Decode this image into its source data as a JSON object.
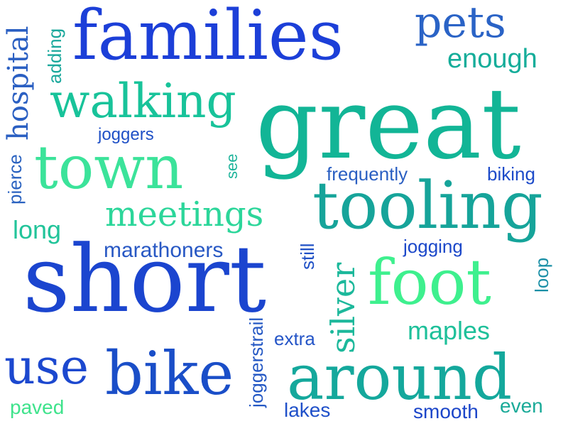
{
  "words": {
    "families": "families",
    "pets": "pets",
    "enough": "enough",
    "adding": "adding",
    "hospital": "hospital",
    "walking": "walking",
    "great": "great",
    "joggers": "joggers",
    "pierce": "pierce",
    "town": "town",
    "see": "see",
    "frequently": "frequently",
    "biking": "biking",
    "tooling": "tooling",
    "meetings": "meetings",
    "long": "long",
    "marathoners": "marathoners",
    "still": "still",
    "jogging": "jogging",
    "silver": "silver",
    "loop": "loop",
    "short": "short",
    "foot": "foot",
    "joggerstrail": "joggerstrail",
    "maples": "maples",
    "extra": "extra",
    "use": "use",
    "bike": "bike",
    "around": "around",
    "paved": "paved",
    "lakes": "lakes",
    "smooth": "smooth",
    "even": "even"
  },
  "palette": {
    "royal_blue": "#1a3fd6",
    "blue": "#1f55c9",
    "steel_blue": "#2a6cc0",
    "teal": "#1aa69c",
    "sea_green": "#10c49a",
    "spring_green": "#25e29a",
    "lime_green": "#4af08c"
  }
}
